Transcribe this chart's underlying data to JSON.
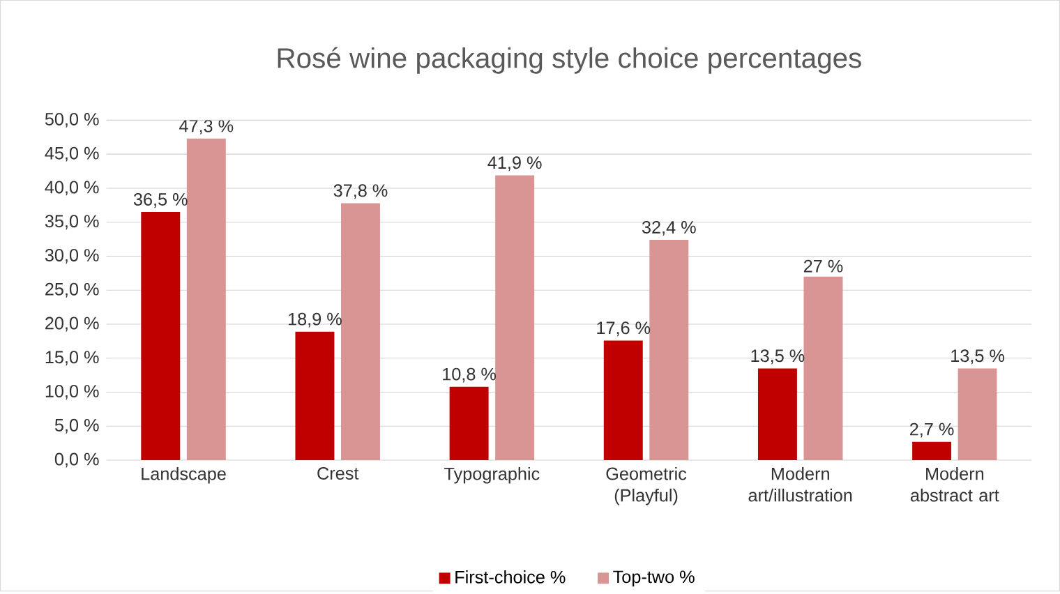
{
  "chart_data": {
    "type": "bar",
    "title": "Rosé wine packaging style choice percentages",
    "categories": [
      "Landscape",
      "Crest",
      "Typographic",
      "Geometric (Playful)",
      "Modern art/illustration",
      "Modern abstract art"
    ],
    "series": [
      {
        "name": "First-choice %",
        "color": "#c00000",
        "values": [
          36.5,
          18.9,
          10.8,
          17.6,
          13.5,
          2.7
        ],
        "value_labels": [
          "36,5 %",
          "18,9 %",
          "10,8 %",
          "17,6 %",
          "13,5 %",
          "2,7 %"
        ]
      },
      {
        "name": "Top-two %",
        "color": "#d99594",
        "values": [
          47.3,
          37.8,
          41.9,
          32.4,
          27,
          13.5
        ],
        "value_labels": [
          "47,3 %",
          "37,8 %",
          "41,9 %",
          "32,4 %",
          "27 %",
          "13,5 %"
        ]
      }
    ],
    "ylim": [
      0,
      50
    ],
    "yticks": [
      {
        "value": 0,
        "label": "0,0 %"
      },
      {
        "value": 5,
        "label": "5,0 %"
      },
      {
        "value": 10,
        "label": "10,0 %"
      },
      {
        "value": 15,
        "label": "15,0 %"
      },
      {
        "value": 20,
        "label": "20,0 %"
      },
      {
        "value": 25,
        "label": "25,0 %"
      },
      {
        "value": 30,
        "label": "30,0 %"
      },
      {
        "value": 35,
        "label": "35,0 %"
      },
      {
        "value": 40,
        "label": "40,0 %"
      },
      {
        "value": 45,
        "label": "45,0 %"
      },
      {
        "value": 50,
        "label": "50,0 %"
      }
    ],
    "grid": "y",
    "legend": "bottom"
  }
}
